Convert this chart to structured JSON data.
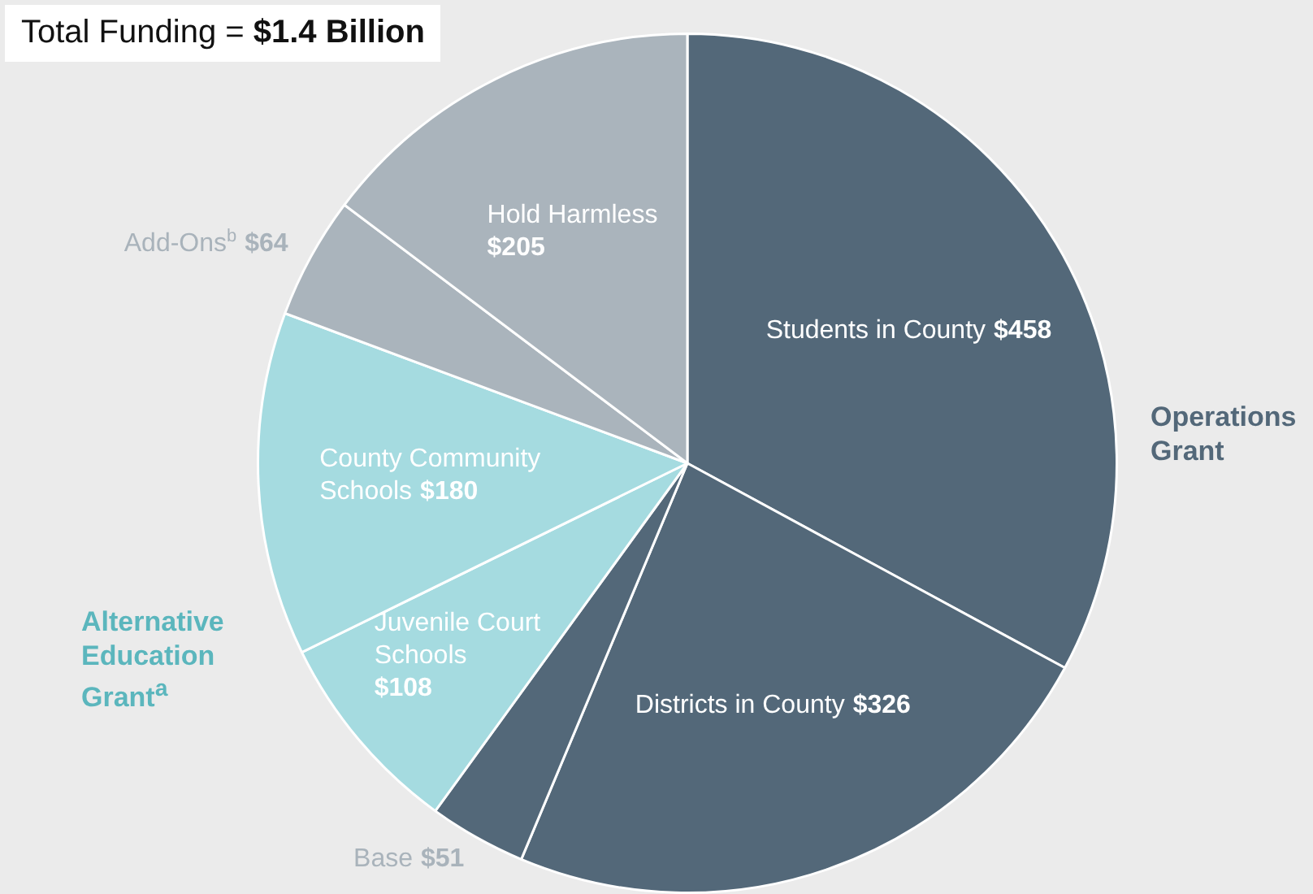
{
  "chart_data": {
    "type": "pie",
    "title": "Total Funding = $1.4 Billion",
    "categories": [
      "Students in County",
      "Districts in County",
      "Base",
      "Juvenile Court Schools",
      "County Community Schools",
      "Add-Ons$^{b}$",
      "Hold Harmless"
    ],
    "values": [
      458,
      326,
      51,
      108,
      180,
      64,
      205
    ],
    "value_labels": [
      "$458",
      "$326",
      "$51",
      "$108",
      "$180",
      "$64",
      "$205"
    ],
    "colors": [
      "#536879",
      "#536879",
      "#536879",
      "#a5dbe0",
      "#a5dbe0",
      "#aab4bc",
      "#aab4bc"
    ],
    "annotations": [
      "Operations Grant",
      "Alternative Education Grant$^{a}$"
    ],
    "legend": false
  }
}
